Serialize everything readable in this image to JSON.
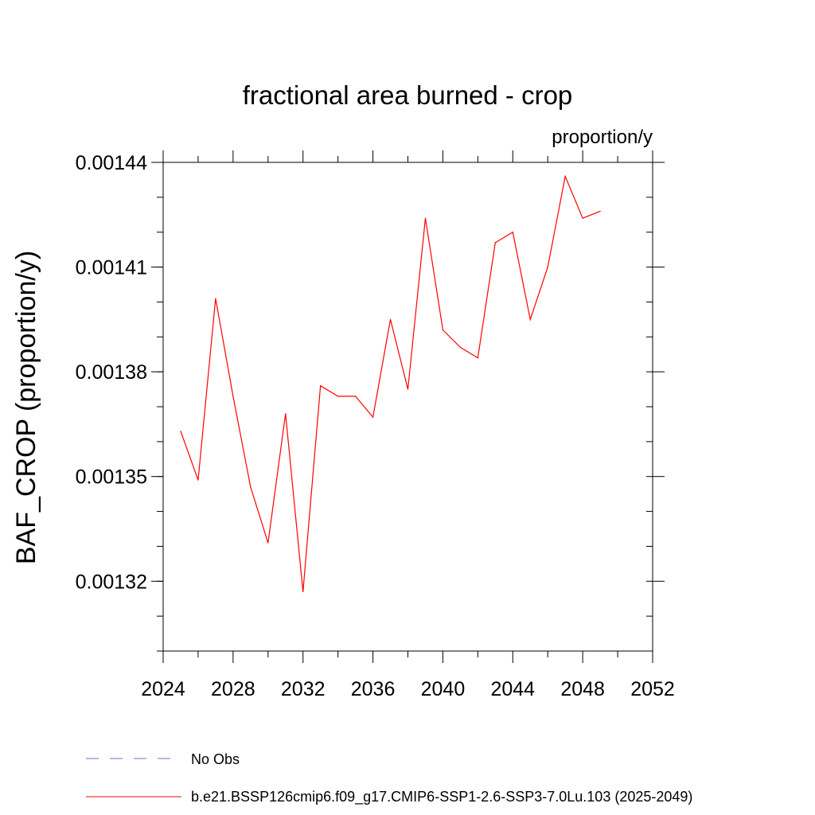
{
  "chart_data": {
    "type": "line",
    "title": "fractional area burned - crop",
    "units": "proportion/y",
    "xlabel": "",
    "ylabel": "BAF_CROP  (proportion/y)",
    "xlim": [
      2024,
      2052
    ],
    "ylim": [
      0.0013,
      0.00144
    ],
    "x_ticks": [
      2024,
      2028,
      2032,
      2036,
      2040,
      2044,
      2048,
      2052
    ],
    "x_tick_labels": [
      "2024",
      "2028",
      "2032",
      "2036",
      "2040",
      "2044",
      "2048",
      "2052"
    ],
    "y_ticks": [
      0.00132,
      0.00135,
      0.00138,
      0.00141,
      0.00144
    ],
    "y_tick_labels": [
      "0.00132",
      "0.00135",
      "0.00138",
      "0.00141",
      "0.00144"
    ],
    "y_minor_step": 1e-05,
    "grid": false,
    "series": [
      {
        "name": "b.e21.BSSP126cmip6.f09_g17.CMIP6-SSP1-2.6-SSP3-7.0Lu.103 (2025-2049)",
        "color": "#ff0000",
        "dash": "solid",
        "x": [
          2025,
          2026,
          2027,
          2028,
          2029,
          2030,
          2031,
          2032,
          2033,
          2034,
          2035,
          2036,
          2037,
          2038,
          2039,
          2040,
          2041,
          2042,
          2043,
          2044,
          2045,
          2046,
          2047,
          2048,
          2049
        ],
        "values": [
          0.001363,
          0.001349,
          0.001401,
          0.001373,
          0.001347,
          0.001331,
          0.001368,
          0.001317,
          0.001376,
          0.001373,
          0.001373,
          0.001367,
          0.001395,
          0.001375,
          0.001424,
          0.001392,
          0.001387,
          0.001384,
          0.001417,
          0.00142,
          0.001395,
          0.00141,
          0.001436,
          0.001424,
          0.001426
        ]
      }
    ],
    "legend": {
      "placement": "bottom",
      "entries": [
        {
          "label": "No Obs",
          "color": "#7b68c8",
          "dash": "dashed"
        },
        {
          "label": "b.e21.BSSP126cmip6.f09_g17.CMIP6-SSP1-2.6-SSP3-7.0Lu.103 (2025-2049)",
          "color": "#ff0000",
          "dash": "solid"
        }
      ]
    }
  }
}
